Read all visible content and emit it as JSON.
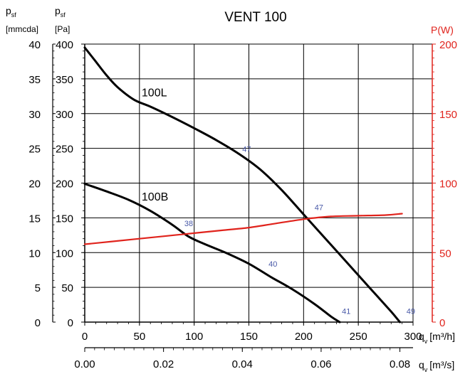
{
  "chart_data": {
    "type": "line",
    "title": "VENT 100",
    "colors": {
      "curve": "#000000",
      "power": "#e0231c",
      "annotation": "#4a5aa8",
      "grid": "#000000"
    },
    "axes": {
      "left_mmcda": {
        "label_main": "p",
        "label_sub": "sf",
        "label_unit": "[mmcda]",
        "range": [
          0,
          40
        ],
        "ticks": [
          0,
          5,
          10,
          15,
          20,
          25,
          30,
          35,
          40
        ]
      },
      "left_pa": {
        "label_main": "p",
        "label_sub": "sf",
        "label_unit": "[Pa]",
        "range": [
          0,
          400
        ],
        "ticks": [
          0,
          50,
          100,
          150,
          200,
          250,
          300,
          350,
          400
        ]
      },
      "right_power": {
        "label": "P(W)",
        "range": [
          0,
          200
        ],
        "ticks": [
          0,
          50,
          100,
          150,
          200
        ]
      },
      "bottom_m3h": {
        "label_main": "q",
        "label_sub": "v",
        "label_unit": "[m³/h]",
        "range": [
          0,
          300
        ],
        "ticks": [
          0,
          50,
          100,
          150,
          200,
          250,
          300
        ]
      },
      "bottom_m3s": {
        "label_main": "q",
        "label_sub": "v",
        "label_unit": "[m³/s]",
        "tick_labels": [
          "0.00",
          "0.02",
          "0.04",
          "0.06",
          "0.08"
        ],
        "tick_values_m3h": [
          0,
          72,
          144,
          216,
          288
        ]
      }
    },
    "grid": true,
    "series": [
      {
        "name": "100L",
        "axis": "left_pa",
        "x": [
          0,
          10,
          20,
          30,
          45,
          60,
          80,
          100,
          120,
          140,
          160,
          180,
          200,
          220,
          240,
          260,
          280,
          288
        ],
        "y": [
          395,
          375,
          355,
          338,
          320,
          310,
          295,
          279,
          262,
          243,
          220,
          190,
          155,
          120,
          85,
          50,
          15,
          0
        ]
      },
      {
        "name": "100B",
        "axis": "left_pa",
        "x": [
          0,
          20,
          40,
          60,
          80,
          95,
          110,
          130,
          150,
          170,
          190,
          210,
          225,
          233
        ],
        "y": [
          199,
          188,
          176,
          160,
          140,
          123,
          112,
          99,
          84,
          65,
          47,
          26,
          8,
          0
        ]
      },
      {
        "name": "P",
        "axis": "right_power",
        "x": [
          0,
          25,
          50,
          75,
          100,
          125,
          150,
          175,
          200,
          225,
          250,
          275,
          290
        ],
        "y": [
          56,
          58,
          60,
          62,
          64,
          66,
          68,
          71,
          74,
          76,
          76.5,
          77,
          78
        ]
      }
    ],
    "series_labels": [
      {
        "text": "100L",
        "x": 52,
        "y": 325
      },
      {
        "text": "100B",
        "x": 52,
        "y": 175
      }
    ],
    "annotations": [
      {
        "text": "47",
        "x": 148,
        "y": 245
      },
      {
        "text": "47",
        "x": 214,
        "y": 161
      },
      {
        "text": "38",
        "x": 95,
        "y": 138
      },
      {
        "text": "40",
        "x": 172,
        "y": 80
      },
      {
        "text": "41",
        "x": 239,
        "y": 12
      },
      {
        "text": "49",
        "x": 298,
        "y": 12
      }
    ]
  }
}
